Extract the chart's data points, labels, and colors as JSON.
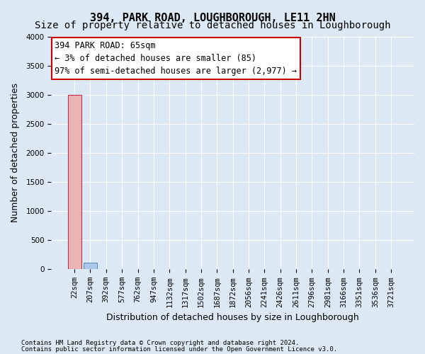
{
  "title": "394, PARK ROAD, LOUGHBOROUGH, LE11 2HN",
  "subtitle": "Size of property relative to detached houses in Loughborough",
  "xlabel": "Distribution of detached houses by size in Loughborough",
  "ylabel": "Number of detached properties",
  "footnote1": "Contains HM Land Registry data © Crown copyright and database right 2024.",
  "footnote2": "Contains public sector information licensed under the Open Government Licence v3.0.",
  "bin_labels": [
    "22sqm",
    "207sqm",
    "392sqm",
    "577sqm",
    "762sqm",
    "947sqm",
    "1132sqm",
    "1317sqm",
    "1502sqm",
    "1687sqm",
    "1872sqm",
    "2056sqm",
    "2241sqm",
    "2426sqm",
    "2611sqm",
    "2796sqm",
    "2981sqm",
    "3166sqm",
    "3351sqm",
    "3536sqm",
    "3721sqm"
  ],
  "bar_values": [
    3000,
    110,
    0,
    0,
    0,
    0,
    0,
    0,
    0,
    0,
    0,
    0,
    0,
    0,
    0,
    0,
    0,
    0,
    0,
    0,
    0
  ],
  "bar_color": "#aec6e8",
  "bar_edge_color": "#5a8fc0",
  "highlight_bar_index": 0,
  "highlight_bar_color": "#e8b4b4",
  "highlight_bar_edge_color": "#c0304a",
  "ylim": [
    0,
    4000
  ],
  "yticks": [
    0,
    500,
    1000,
    1500,
    2000,
    2500,
    3000,
    3500,
    4000
  ],
  "annotation_text": "394 PARK ROAD: 65sqm\n← 3% of detached houses are smaller (85)\n97% of semi-detached houses are larger (2,977) →",
  "annotation_box_color": "#ffffff",
  "annotation_box_edge_color": "#cc0000",
  "bg_color": "#dce9f5",
  "grid_color": "#ffffff",
  "title_fontsize": 11,
  "subtitle_fontsize": 10,
  "axis_label_fontsize": 9,
  "tick_fontsize": 7.5,
  "annotation_fontsize": 8.5
}
